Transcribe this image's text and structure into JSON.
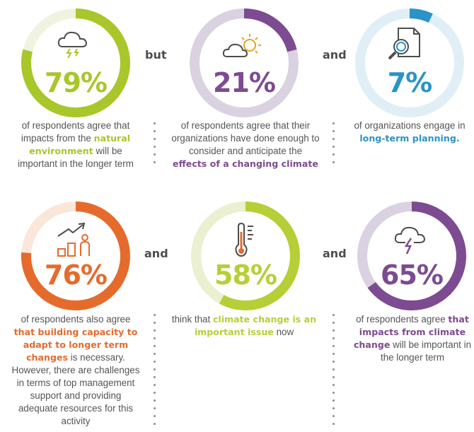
{
  "colors": {
    "green": "#a9c62a",
    "green_light": "#f1f3e0",
    "purple": "#7c4b91",
    "purple_light": "#dad2e0",
    "blue": "#2a93c8",
    "blue_light": "#e0eff6",
    "orange": "#e56b2c",
    "orange_light": "#fbe6da",
    "lime": "#b6cf37",
    "lime_light": "#eaf0d0",
    "text": "#555555"
  },
  "connectors": {
    "c1": "but",
    "c2": "and",
    "c3": "and",
    "c4": "and"
  },
  "stats": [
    {
      "id": "natural-environment",
      "value": "79%",
      "fraction": 0.79,
      "icon": "storm-cloud-icon",
      "desc": {
        "pre": "of respondents agree that impacts from the ",
        "highlight": "natural environment",
        "post": " will be important in the longer term"
      }
    },
    {
      "id": "changing-climate",
      "value": "21%",
      "fraction": 0.21,
      "icon": "sun-cloud-icon",
      "desc": {
        "pre": "of respondents agree that their organizations have done enough to consider and anticipate the ",
        "highlight": "effects of a changing climate",
        "post": ""
      }
    },
    {
      "id": "long-term-planning",
      "value": "7%",
      "fraction": 0.07,
      "icon": "document-search-icon",
      "desc": {
        "pre": "of organizations engage in ",
        "highlight": "long-term planning.",
        "post": ""
      }
    },
    {
      "id": "building-capacity",
      "value": "76%",
      "fraction": 0.76,
      "icon": "growth-chart-person-icon",
      "desc": {
        "pre": "of respondents also agree ",
        "highlight": "that building capacity to adapt to longer term changes",
        "post": " is necessary. However, there are challenges in terms of top management support and providing adequate resources for this activity"
      }
    },
    {
      "id": "important-issue",
      "value": "58%",
      "fraction": 0.58,
      "icon": "thermometer-icon",
      "desc": {
        "pre": "think that ",
        "highlight": "climate change is an important issue",
        "post": " now"
      }
    },
    {
      "id": "impacts-climate-change",
      "value": "65%",
      "fraction": 0.65,
      "icon": "thunder-cloud-icon",
      "desc": {
        "pre": "of respondents agree ",
        "highlight": "that impacts from climate change",
        "post": " will be important in the longer term"
      }
    }
  ]
}
